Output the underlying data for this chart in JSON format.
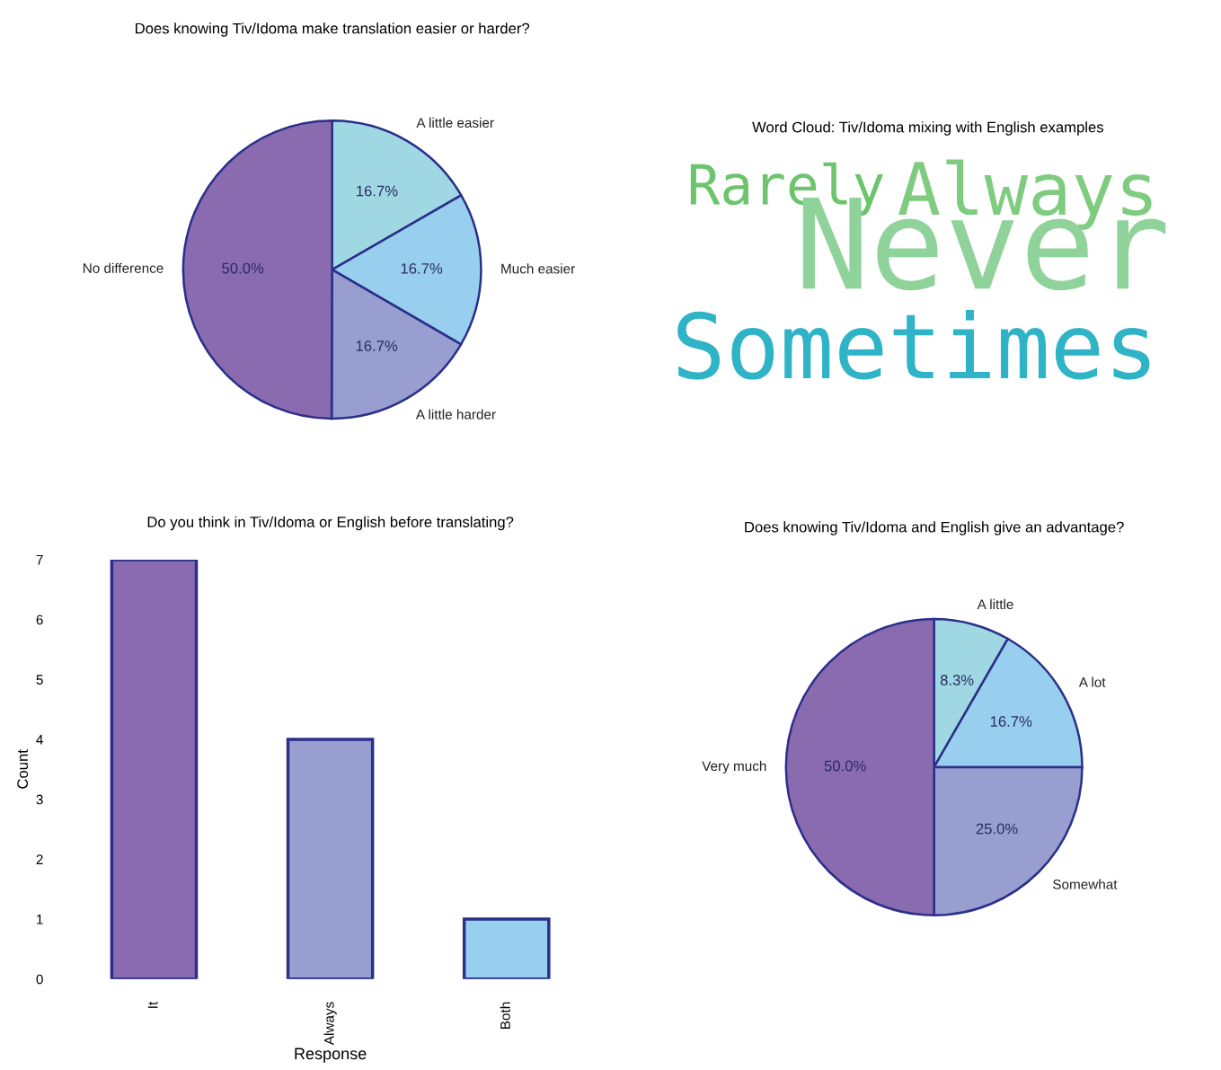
{
  "chart_data": [
    {
      "type": "pie",
      "title": "Does knowing Tiv/Idoma make translation easier or harder?",
      "categories": [
        "A little easier",
        "Much easier",
        "A little harder",
        "No difference"
      ],
      "values": [
        16.7,
        16.7,
        16.7,
        50.0
      ],
      "value_labels": [
        "16.7%",
        "16.7%",
        "16.7%",
        "50.0%"
      ],
      "colors": [
        "#9fd8e2",
        "#99cfee",
        "#989fd0",
        "#8a6bb0"
      ]
    },
    {
      "type": "other",
      "title": "Word Cloud: Tiv/Idoma mixing with English examples",
      "annotations": [
        "Rarely",
        "Always",
        "Never",
        "Sometimes"
      ]
    },
    {
      "type": "bar",
      "title": "Do you think in Tiv/Idoma or English before translating?",
      "xlabel": "Response",
      "ylabel": "Count",
      "categories": [
        "It",
        "Always",
        "Both"
      ],
      "values": [
        7,
        4,
        1
      ],
      "colors": [
        "#8a6bb0",
        "#989fd0",
        "#99cfee"
      ],
      "ylim": [
        0,
        7
      ],
      "yticks": [
        0,
        1,
        2,
        3,
        4,
        5,
        6,
        7
      ],
      "grid": false
    },
    {
      "type": "pie",
      "title": "Does knowing Tiv/Idoma and English give an advantage?",
      "categories": [
        "A little",
        "A lot",
        "Somewhat",
        "Very much"
      ],
      "values": [
        8.3,
        16.7,
        25.0,
        50.0
      ],
      "value_labels": [
        "8.3%",
        "16.7%",
        "25.0%",
        "50.0%"
      ],
      "colors": [
        "#9fd8e2",
        "#99cfee",
        "#989fd0",
        "#8a6bb0"
      ]
    }
  ]
}
